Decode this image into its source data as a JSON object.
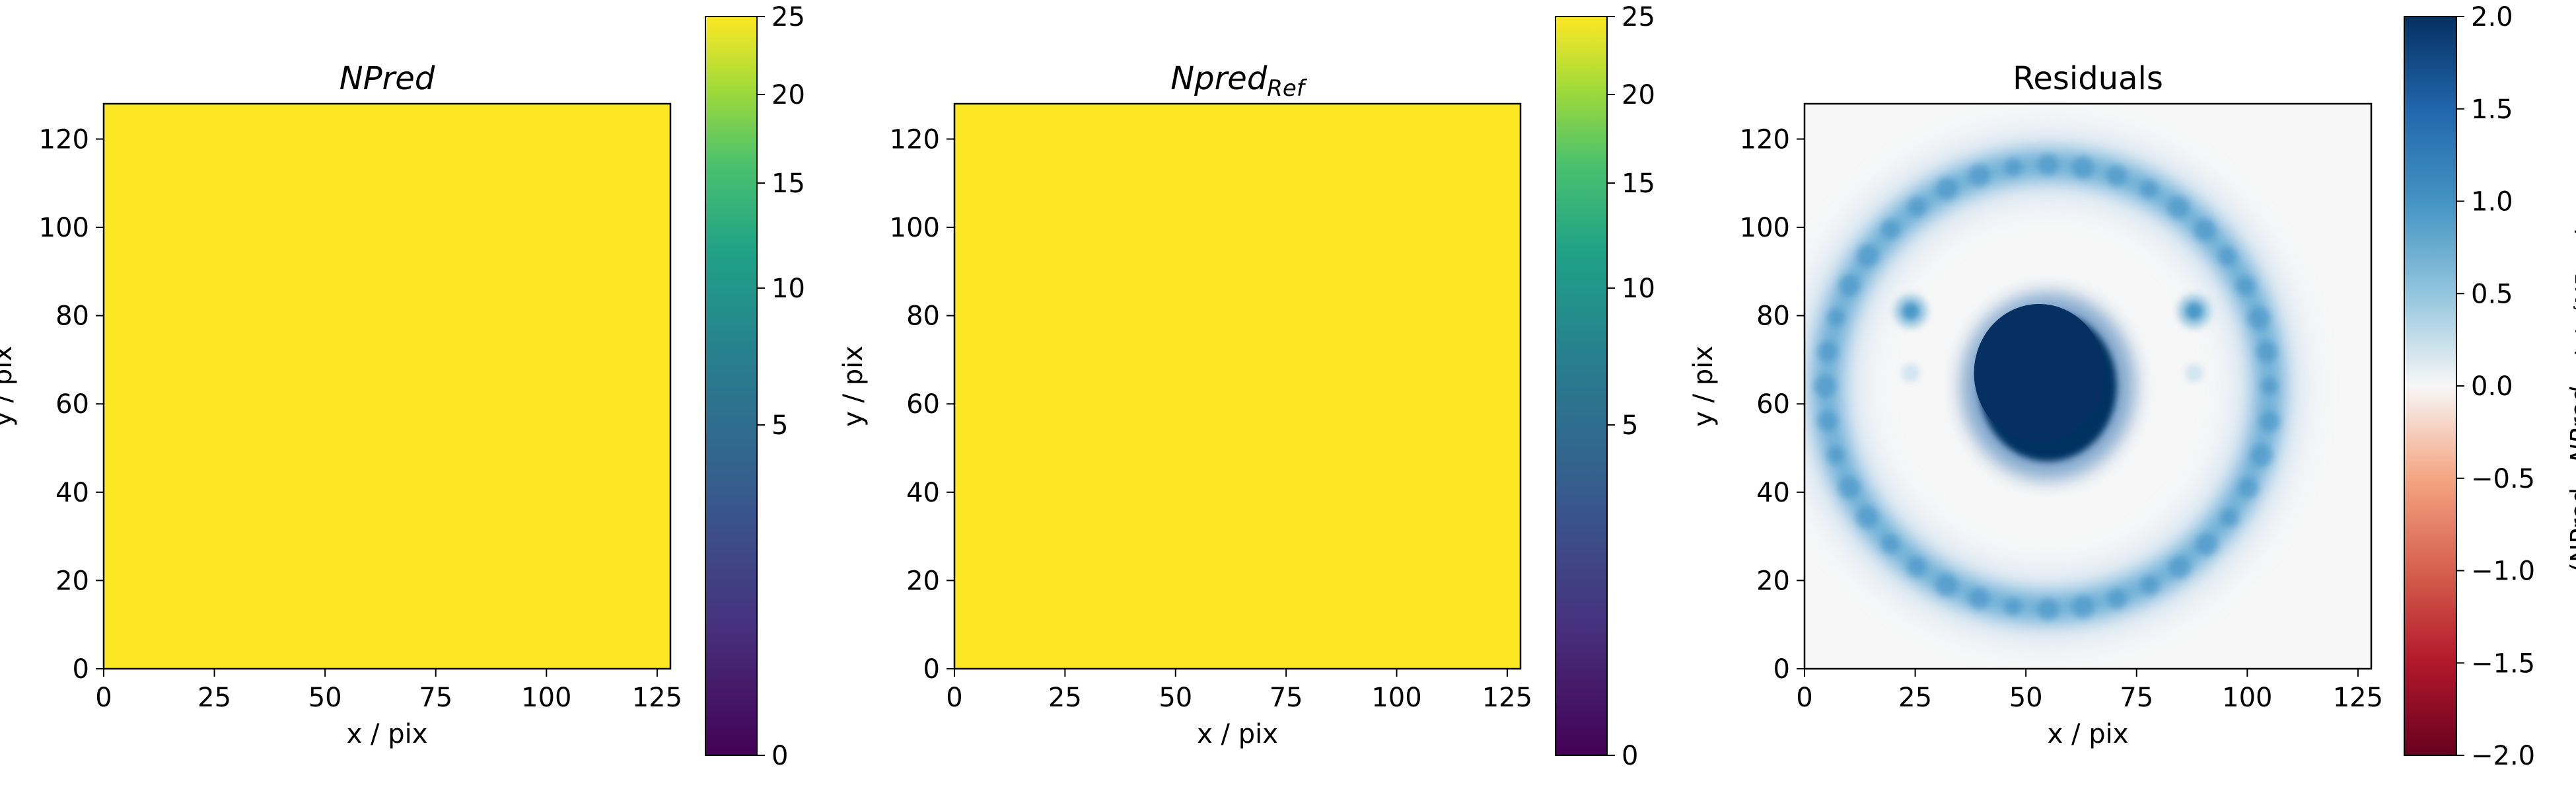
{
  "chart_data": [
    {
      "type": "heatmap",
      "title": "NPred",
      "title_italic": true,
      "xlabel": "x / pix",
      "ylabel": "y / pix",
      "xlim": [
        0,
        128
      ],
      "ylim": [
        0,
        128
      ],
      "x_ticks": [
        0,
        25,
        50,
        75,
        100,
        125
      ],
      "y_ticks": [
        0,
        20,
        40,
        60,
        80,
        100,
        120
      ],
      "uniform_value": 25,
      "fill_color": "#fde725",
      "colorbar": {
        "cmap": "viridis",
        "scale": "power",
        "range": [
          0,
          25
        ],
        "ticks": [
          0,
          5,
          10,
          15,
          20,
          25
        ]
      }
    },
    {
      "type": "heatmap",
      "title": "Npred",
      "title_subscript": "Ref",
      "title_italic": true,
      "xlabel": "x / pix",
      "ylabel": "y / pix",
      "xlim": [
        0,
        128
      ],
      "ylim": [
        0,
        128
      ],
      "x_ticks": [
        0,
        25,
        50,
        75,
        100,
        125
      ],
      "y_ticks": [
        0,
        20,
        40,
        60,
        80,
        100,
        120
      ],
      "uniform_value": 25,
      "fill_color": "#fde725",
      "colorbar": {
        "cmap": "viridis",
        "scale": "power",
        "range": [
          0,
          25
        ],
        "ticks": [
          0,
          5,
          10,
          15,
          20,
          25
        ]
      }
    },
    {
      "type": "heatmap",
      "title": "Residuals",
      "xlabel": "x / pix",
      "ylabel": "y / pix",
      "xlim": [
        0,
        128
      ],
      "ylim": [
        0,
        128
      ],
      "x_ticks": [
        0,
        25,
        50,
        75,
        100,
        125
      ],
      "y_ticks": [
        0,
        20,
        40,
        60,
        80,
        100,
        120
      ],
      "features": {
        "center_blob": {
          "cx": 55,
          "cy": 64,
          "rx": 15.5,
          "ry": 17,
          "value": 2.0
        },
        "ring": {
          "cx": 55,
          "cy": 64,
          "r": 50,
          "value": 0.85
        },
        "spots": [
          {
            "x": 24,
            "y": 81,
            "value": 0.9
          },
          {
            "x": 88,
            "y": 81,
            "value": 0.9
          }
        ]
      },
      "colorbar": {
        "cmap": "RdBu",
        "range": [
          -2.0,
          2.0
        ],
        "ticks": [
          -2.0,
          -1.5,
          -1.0,
          -0.5,
          0.0,
          0.5,
          1.0,
          1.5,
          2.0
        ],
        "tick_labels": [
          "−2.0",
          "−1.5",
          "−1.0",
          "−0.5",
          "0.0",
          "0.5",
          "1.0",
          "1.5",
          "2.0"
        ],
        "label": "(NPred - NPred_Ref) / √NPred_Ref"
      }
    }
  ]
}
